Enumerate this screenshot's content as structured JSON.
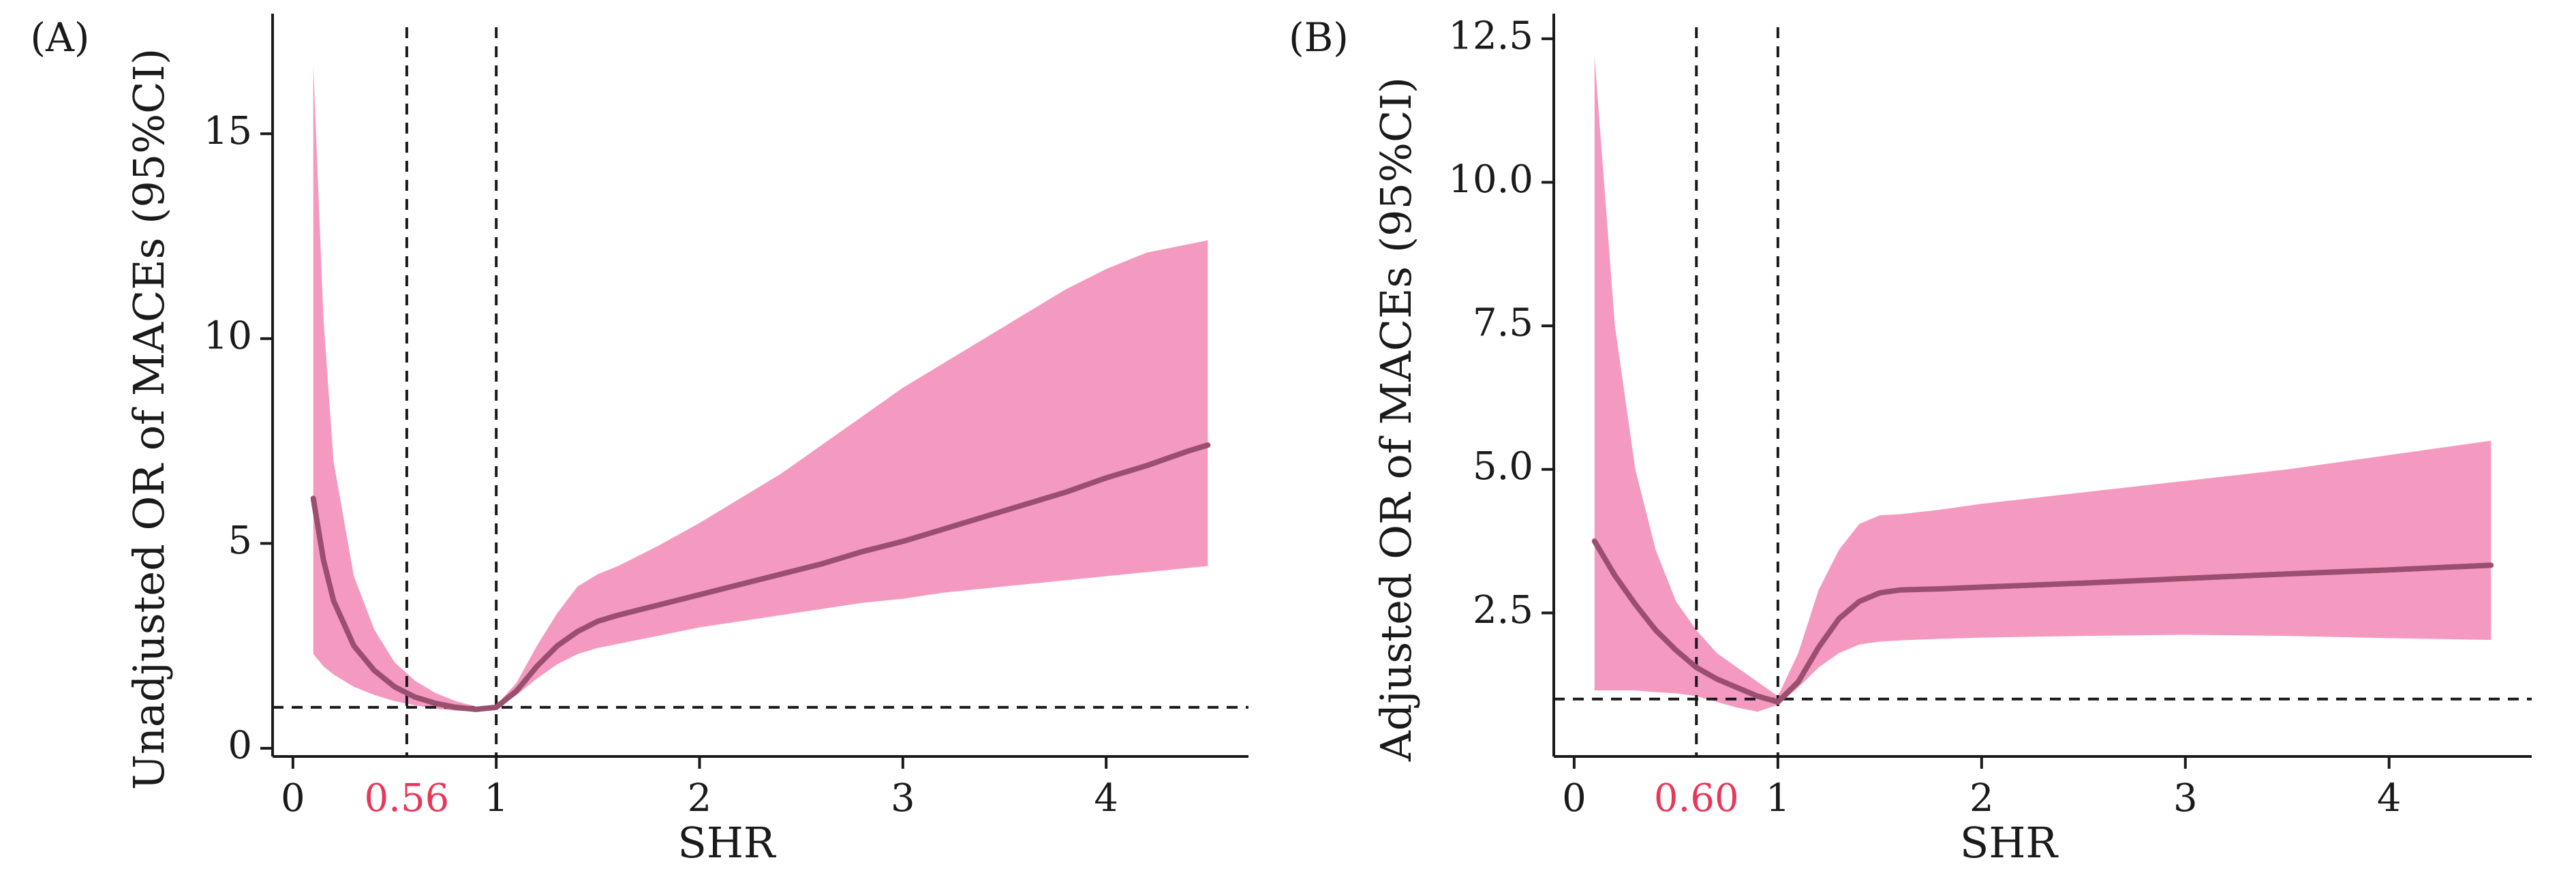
{
  "colors": {
    "band": "#f49ac1",
    "line": "#9b4f6e",
    "threshold_label": "#e8385a",
    "axis": "#1a1a1a"
  },
  "chart_data": [
    {
      "type": "line",
      "panel_label": "(A)",
      "xlabel": "SHR",
      "ylabel": "Unadjusted OR of MACEs (95%CI)",
      "xlim": [
        -0.1,
        4.7
      ],
      "ylim": [
        -0.2,
        17.6
      ],
      "xticks": [
        0,
        1,
        2,
        3,
        4
      ],
      "xtick_labels": [
        "0",
        "1",
        "2",
        "3",
        "4"
      ],
      "yticks": [
        0,
        5,
        10,
        15
      ],
      "ytick_labels": [
        "0",
        "5",
        "10",
        "15"
      ],
      "reference_line_y": 1,
      "vertical_lines_x": [
        0.56,
        1
      ],
      "threshold_label": "0.56",
      "threshold_x": 0.56,
      "series": [
        {
          "x": [
            0.1,
            0.15,
            0.2,
            0.3,
            0.4,
            0.5,
            0.6,
            0.7,
            0.8,
            0.9,
            1.0,
            1.1,
            1.2,
            1.3,
            1.4,
            1.5,
            1.6,
            1.8,
            2.0,
            2.2,
            2.4,
            2.6,
            2.8,
            3.0,
            3.2,
            3.4,
            3.6,
            3.8,
            4.0,
            4.2,
            4.4,
            4.5
          ],
          "y": [
            6.1,
            4.6,
            3.6,
            2.5,
            1.9,
            1.5,
            1.25,
            1.1,
            1.0,
            0.95,
            1.0,
            1.4,
            2.0,
            2.5,
            2.85,
            3.1,
            3.25,
            3.5,
            3.75,
            4.0,
            4.25,
            4.5,
            4.8,
            5.05,
            5.35,
            5.65,
            5.95,
            6.25,
            6.6,
            6.9,
            7.25,
            7.4
          ],
          "lower": [
            2.3,
            2.0,
            1.8,
            1.5,
            1.3,
            1.15,
            1.05,
            0.97,
            0.92,
            0.9,
            0.95,
            1.3,
            1.7,
            2.05,
            2.3,
            2.45,
            2.55,
            2.75,
            2.95,
            3.1,
            3.25,
            3.4,
            3.55,
            3.65,
            3.8,
            3.9,
            4.0,
            4.1,
            4.2,
            4.3,
            4.4,
            4.45
          ],
          "upper": [
            16.7,
            10.5,
            7.0,
            4.2,
            2.9,
            2.1,
            1.65,
            1.35,
            1.15,
            1.02,
            1.05,
            1.6,
            2.5,
            3.3,
            3.95,
            4.25,
            4.45,
            4.95,
            5.5,
            6.1,
            6.7,
            7.4,
            8.1,
            8.8,
            9.4,
            10.0,
            10.6,
            11.2,
            11.7,
            12.1,
            12.3,
            12.4
          ]
        }
      ]
    },
    {
      "type": "line",
      "panel_label": "(B)",
      "xlabel": "SHR",
      "ylabel": "Adjusted OR of MACEs (95%CI)",
      "xlim": [
        -0.1,
        4.7
      ],
      "ylim": [
        0.0,
        12.7
      ],
      "xticks": [
        0,
        1,
        2,
        3,
        4
      ],
      "xtick_labels": [
        "0",
        "1",
        "2",
        "3",
        "4"
      ],
      "yticks": [
        2.5,
        5.0,
        7.5,
        10.0,
        12.5
      ],
      "ytick_labels": [
        "2.5",
        "5.0",
        "7.5",
        "10.0",
        "12.5"
      ],
      "reference_line_y": 1,
      "vertical_lines_x": [
        0.6,
        1
      ],
      "threshold_label": "0.60",
      "threshold_x": 0.6,
      "series": [
        {
          "x": [
            0.1,
            0.2,
            0.3,
            0.4,
            0.5,
            0.6,
            0.7,
            0.8,
            0.9,
            1.0,
            1.1,
            1.2,
            1.3,
            1.4,
            1.5,
            1.6,
            1.8,
            2.0,
            2.5,
            3.0,
            3.5,
            4.0,
            4.5
          ],
          "y": [
            3.75,
            3.15,
            2.65,
            2.2,
            1.85,
            1.55,
            1.35,
            1.2,
            1.05,
            0.95,
            1.3,
            1.9,
            2.4,
            2.7,
            2.85,
            2.9,
            2.92,
            2.95,
            3.02,
            3.1,
            3.18,
            3.25,
            3.33
          ],
          "lower": [
            1.15,
            1.15,
            1.15,
            1.12,
            1.1,
            1.05,
            0.95,
            0.85,
            0.78,
            0.9,
            1.2,
            1.55,
            1.8,
            1.95,
            2.0,
            2.02,
            2.05,
            2.07,
            2.1,
            2.12,
            2.1,
            2.06,
            2.03
          ],
          "upper": [
            12.2,
            7.5,
            5.0,
            3.6,
            2.7,
            2.2,
            1.8,
            1.55,
            1.3,
            1.05,
            1.8,
            2.9,
            3.6,
            4.05,
            4.2,
            4.22,
            4.3,
            4.4,
            4.6,
            4.8,
            5.0,
            5.25,
            5.5
          ]
        }
      ]
    }
  ]
}
